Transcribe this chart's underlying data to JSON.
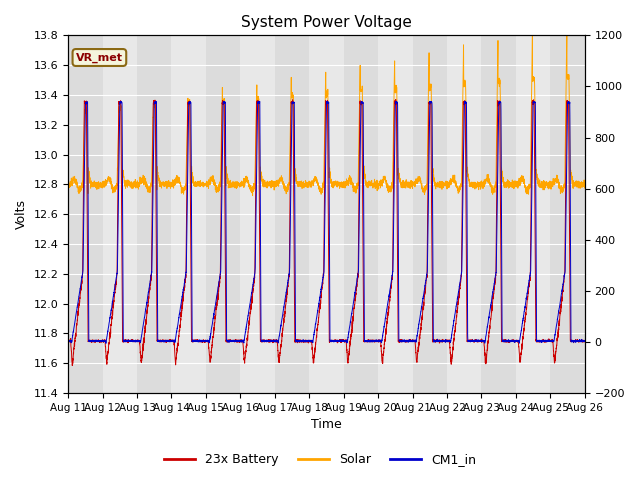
{
  "title": "System Power Voltage",
  "xlabel": "Time",
  "ylabel": "Volts",
  "annotation_text": "VR_met",
  "annotation_color": "#8B0000",
  "annotation_bg": "#F5F5DC",
  "annotation_border": "#8B6914",
  "ylim_left": [
    11.4,
    13.8
  ],
  "ylim_right": [
    -200,
    1200
  ],
  "xtick_labels": [
    "Aug 11",
    "Aug 12",
    "Aug 13",
    "Aug 14",
    "Aug 15",
    "Aug 16",
    "Aug 17",
    "Aug 18",
    "Aug 19",
    "Aug 20",
    "Aug 21",
    "Aug 22",
    "Aug 23",
    "Aug 24",
    "Aug 25",
    "Aug 26"
  ],
  "ytick_left": [
    11.4,
    11.6,
    11.8,
    12.0,
    12.2,
    12.4,
    12.6,
    12.8,
    13.0,
    13.2,
    13.4,
    13.6,
    13.8
  ],
  "ytick_right": [
    -200,
    0,
    200,
    400,
    600,
    800,
    1000,
    1200
  ],
  "color_battery": "#CC0000",
  "color_solar": "#FFA500",
  "color_cm1": "#0000CC",
  "legend_labels": [
    "23x Battery",
    "Solar",
    "CM1_in"
  ],
  "bg_color": "#E8E8E8",
  "bg_color2": "#D0D0D0",
  "grid_color": "#FFFFFF",
  "n_cycles": 15
}
